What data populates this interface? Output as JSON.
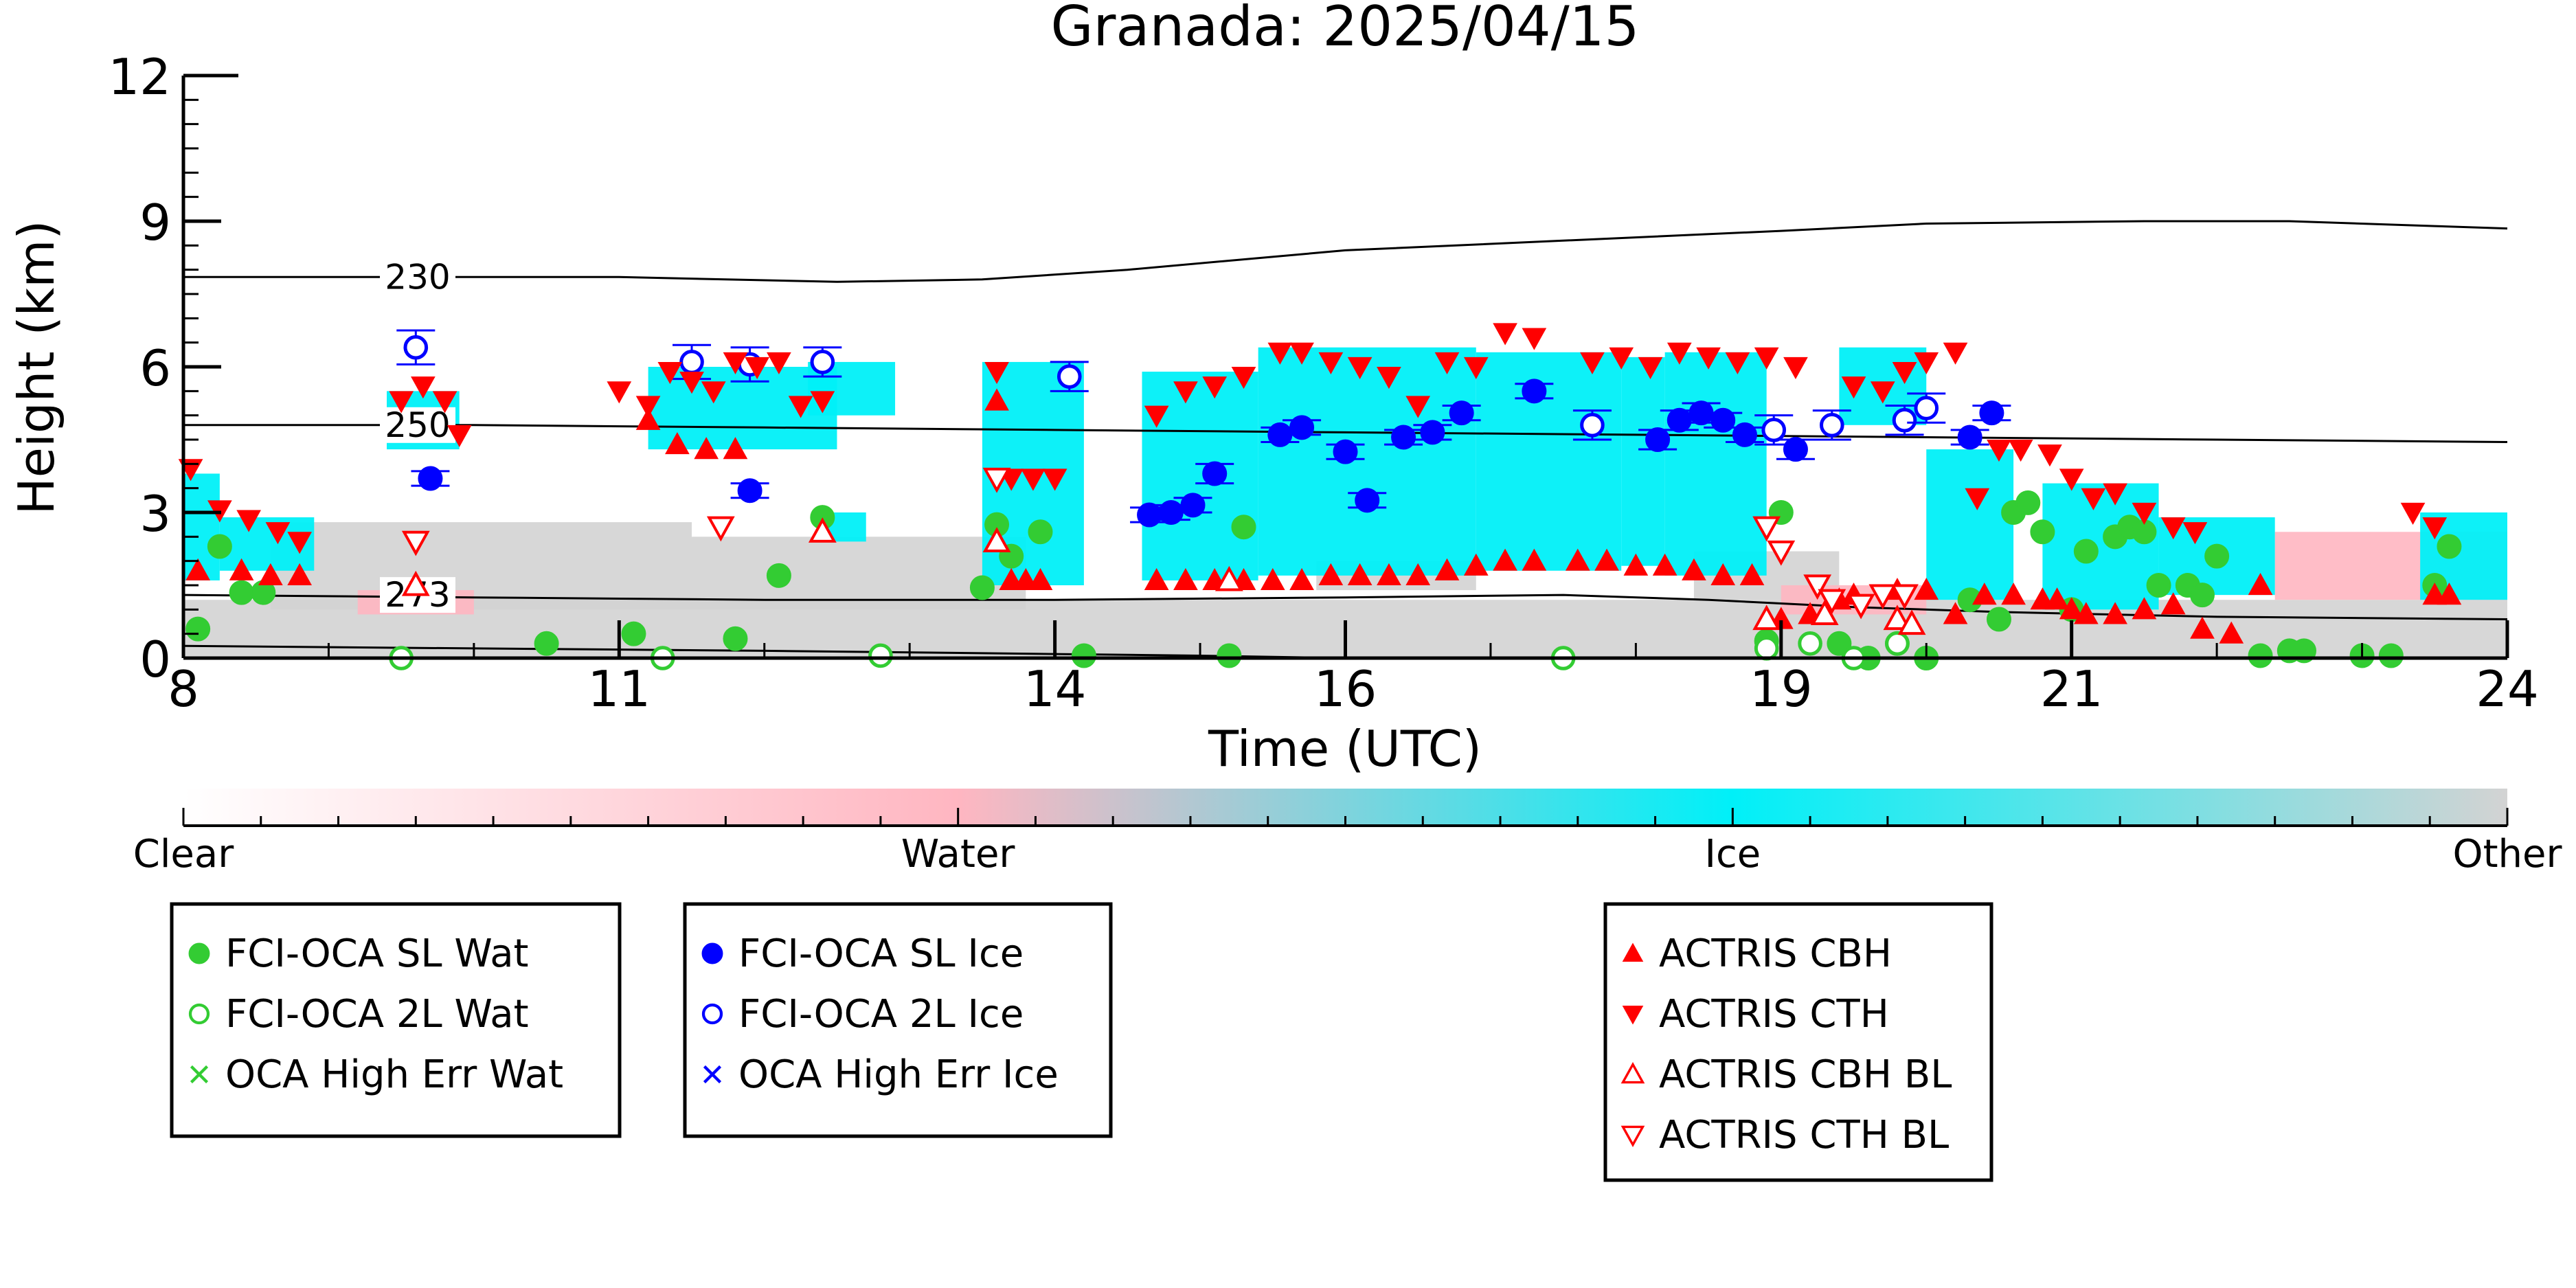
{
  "chart_data": {
    "type": "scatter",
    "title": "Granada: 2025/04/15",
    "xlabel": "Time (UTC)",
    "ylabel": "Height (km)",
    "xlim": [
      8,
      24
    ],
    "ylim": [
      0,
      12
    ],
    "x_ticks": [
      8,
      11,
      14,
      16,
      19,
      21,
      24
    ],
    "y_ticks": [
      0,
      3,
      6,
      9,
      12
    ],
    "grid": false,
    "colors": {
      "clear": "#ffffff",
      "water": "#ffb6c1",
      "ice": "#00f0f8",
      "other": "#d3d3d3",
      "fci_wat": "#33cc33",
      "fci_ice": "#0000ff",
      "actris": "#ff0000"
    },
    "colorbar": {
      "labels": [
        "Clear",
        "Water",
        "Ice",
        "Other"
      ],
      "colors": [
        "#ffffff",
        "#ffb6c1",
        "#00f0f8",
        "#d3d3d3"
      ]
    },
    "isotherms": [
      {
        "label": "230",
        "label_x": 9.4,
        "points": [
          [
            8,
            7.85
          ],
          [
            9,
            7.85
          ],
          [
            11,
            7.85
          ],
          [
            12.5,
            7.75
          ],
          [
            13.5,
            7.8
          ],
          [
            14.5,
            8.0
          ],
          [
            16,
            8.4
          ],
          [
            17.5,
            8.6
          ],
          [
            19,
            8.8
          ],
          [
            20,
            8.95
          ],
          [
            21.5,
            9.0
          ],
          [
            22.5,
            9.0
          ],
          [
            23.5,
            8.9
          ],
          [
            24,
            8.85
          ]
        ]
      },
      {
        "label": "250",
        "label_x": 9.4,
        "points": [
          [
            8,
            4.8
          ],
          [
            10,
            4.8
          ],
          [
            12,
            4.75
          ],
          [
            14,
            4.7
          ],
          [
            16,
            4.65
          ],
          [
            18,
            4.6
          ],
          [
            20,
            4.55
          ],
          [
            22,
            4.5
          ],
          [
            24,
            4.45
          ]
        ]
      },
      {
        "label": "273",
        "label_x": 9.4,
        "points": [
          [
            8,
            1.3
          ],
          [
            10,
            1.25
          ],
          [
            12,
            1.2
          ],
          [
            14,
            1.2
          ],
          [
            16,
            1.25
          ],
          [
            17.5,
            1.3
          ],
          [
            18.5,
            1.2
          ],
          [
            19.5,
            1.05
          ],
          [
            20.5,
            0.95
          ],
          [
            22,
            0.85
          ],
          [
            24,
            0.8
          ]
        ]
      },
      {
        "label": "",
        "label_x": null,
        "points": [
          [
            8,
            0.25
          ],
          [
            10,
            0.2
          ],
          [
            12,
            0.15
          ],
          [
            13.5,
            0.1
          ],
          [
            15,
            0.05
          ],
          [
            16,
            0.0
          ]
        ]
      }
    ],
    "cloud_regions": {
      "ice": [
        [
          8.0,
          8.25,
          1.6,
          3.8
        ],
        [
          8.25,
          8.9,
          1.8,
          2.9
        ],
        [
          9.4,
          9.9,
          4.3,
          5.5
        ],
        [
          11.2,
          12.5,
          4.3,
          6.0
        ],
        [
          12.3,
          12.9,
          5.0,
          6.1
        ],
        [
          12.4,
          12.7,
          2.4,
          3.0
        ],
        [
          13.5,
          14.2,
          1.5,
          6.1
        ],
        [
          14.6,
          15.4,
          1.6,
          5.9
        ],
        [
          15.4,
          16.9,
          1.7,
          6.4
        ],
        [
          16.9,
          17.9,
          1.8,
          6.3
        ],
        [
          17.9,
          18.2,
          1.9,
          6.2
        ],
        [
          18.2,
          18.9,
          1.7,
          6.3
        ],
        [
          19.4,
          20.0,
          4.8,
          6.4
        ],
        [
          20.0,
          20.6,
          1.2,
          4.3
        ],
        [
          20.8,
          21.6,
          1.0,
          3.6
        ],
        [
          21.6,
          22.4,
          1.3,
          2.9
        ],
        [
          23.4,
          24.0,
          1.2,
          3.0
        ]
      ],
      "other": [
        [
          8.0,
          24.0,
          0.0,
          1.2
        ],
        [
          8.6,
          11.5,
          1.0,
          2.8
        ],
        [
          11.5,
          13.8,
          1.0,
          2.5
        ],
        [
          15.8,
          16.9,
          1.4,
          2.0
        ],
        [
          18.4,
          19.4,
          1.2,
          2.2
        ]
      ],
      "water": [
        [
          9.2,
          10.0,
          0.9,
          1.4
        ],
        [
          19.0,
          20.0,
          0.9,
          1.5
        ],
        [
          22.4,
          24.0,
          1.2,
          2.6
        ]
      ]
    },
    "series": [
      {
        "name": "FCI-OCA SL Wat",
        "marker": "filled-circle",
        "color": "#33cc33",
        "x": [
          8.1,
          8.25,
          8.4,
          8.55,
          10.5,
          11.1,
          11.8,
          12.1,
          12.4,
          13.5,
          13.6,
          13.7,
          13.9,
          14.2,
          15.2,
          15.3,
          18.9,
          19.0,
          19.4,
          19.6,
          19.8,
          20.0,
          20.3,
          20.5,
          20.6,
          20.7,
          20.8,
          21.0,
          21.1,
          21.3,
          21.4,
          21.5,
          21.6,
          21.8,
          21.9,
          22.0,
          22.3,
          22.5,
          22.6,
          23.0,
          23.2,
          23.5,
          23.6
        ],
        "y": [
          0.6,
          2.3,
          1.35,
          1.35,
          0.3,
          0.5,
          0.4,
          1.7,
          2.9,
          1.45,
          2.75,
          2.1,
          2.6,
          0.05,
          0.05,
          2.7,
          0.35,
          3.0,
          0.3,
          0.0,
          0.3,
          0.0,
          1.2,
          0.8,
          3.0,
          3.2,
          2.6,
          1.0,
          2.2,
          2.5,
          2.7,
          2.6,
          1.5,
          1.5,
          1.3,
          2.1,
          0.05,
          0.15,
          0.15,
          0.05,
          0.05,
          1.5,
          2.3
        ]
      },
      {
        "name": "FCI-OCA 2L Wat",
        "marker": "open-circle",
        "color": "#33cc33",
        "x": [
          9.5,
          11.3,
          12.8,
          17.5,
          18.9,
          19.2,
          19.5,
          19.8
        ],
        "y": [
          0.0,
          0.0,
          0.05,
          0.0,
          0.2,
          0.3,
          0.0,
          0.3
        ]
      },
      {
        "name": "OCA High Err Wat",
        "marker": "x",
        "color": "#33cc33",
        "x": [],
        "y": []
      },
      {
        "name": "FCI-OCA SL Ice",
        "marker": "filled-circle",
        "color": "#0000ff",
        "x": [
          9.7,
          11.9,
          14.65,
          14.8,
          14.95,
          15.1,
          15.55,
          15.7,
          16.0,
          16.15,
          16.4,
          16.6,
          16.8,
          17.3,
          18.15,
          18.3,
          18.45,
          18.6,
          18.75,
          19.1,
          20.3,
          20.45
        ],
        "y": [
          3.7,
          3.45,
          2.95,
          3.0,
          3.15,
          3.8,
          4.6,
          4.75,
          4.25,
          3.25,
          4.55,
          4.65,
          5.05,
          5.5,
          4.5,
          4.9,
          5.05,
          4.9,
          4.6,
          4.3,
          4.55,
          5.05
        ],
        "err": [
          0.15,
          0.15,
          0.15,
          0.15,
          0.15,
          0.2,
          0.15,
          0.15,
          0.15,
          0.15,
          0.15,
          0.15,
          0.15,
          0.15,
          0.2,
          0.2,
          0.2,
          0.15,
          0.15,
          0.2,
          0.15,
          0.15
        ]
      },
      {
        "name": "FCI-OCA 2L Ice",
        "marker": "open-circle",
        "color": "#0000ff",
        "x": [
          9.6,
          11.5,
          11.9,
          12.4,
          14.1,
          17.7,
          18.95,
          19.35,
          19.85,
          20.0
        ],
        "y": [
          6.4,
          6.1,
          6.05,
          6.1,
          5.8,
          4.8,
          4.7,
          4.8,
          4.9,
          5.15
        ],
        "err": [
          0.35,
          0.35,
          0.35,
          0.3,
          0.3,
          0.3,
          0.3,
          0.3,
          0.3,
          0.3
        ]
      },
      {
        "name": "OCA High Err Ice",
        "marker": "x",
        "color": "#0000ff",
        "x": [],
        "y": []
      },
      {
        "name": "ACTRIS CBH",
        "marker": "triangle-up",
        "color": "#ff0000",
        "x": [
          8.1,
          8.4,
          8.6,
          8.8,
          11.2,
          11.4,
          11.6,
          11.8,
          13.6,
          13.7,
          13.8,
          13.9,
          14.7,
          14.9,
          15.1,
          15.3,
          15.5,
          15.7,
          15.9,
          16.1,
          16.3,
          16.5,
          16.7,
          16.9,
          17.1,
          17.3,
          17.6,
          17.8,
          18.0,
          18.2,
          18.4,
          18.6,
          18.8,
          19.0,
          19.2,
          19.4,
          19.5,
          19.8,
          20.0,
          20.2,
          20.4,
          20.6,
          20.8,
          20.9,
          21.0,
          21.1,
          21.3,
          21.5,
          21.7,
          21.9,
          22.1,
          22.3,
          23.5,
          23.6
        ],
        "y": [
          1.8,
          1.8,
          1.7,
          1.7,
          4.9,
          4.4,
          4.3,
          4.3,
          5.3,
          1.6,
          1.6,
          1.6,
          1.6,
          1.6,
          1.6,
          1.6,
          1.6,
          1.6,
          1.7,
          1.7,
          1.7,
          1.7,
          1.8,
          1.9,
          2.0,
          2.0,
          2.0,
          2.0,
          1.9,
          1.9,
          1.8,
          1.7,
          1.7,
          0.8,
          0.9,
          1.2,
          1.3,
          1.4,
          1.4,
          0.9,
          1.3,
          1.3,
          1.2,
          1.2,
          1.0,
          0.9,
          0.9,
          1.0,
          1.1,
          0.6,
          0.5,
          1.5,
          1.3,
          1.3
        ]
      },
      {
        "name": "ACTRIS CTH",
        "marker": "triangle-down",
        "color": "#ff0000",
        "x": [
          8.05,
          8.25,
          8.45,
          8.65,
          8.8,
          9.5,
          9.65,
          9.8,
          9.9,
          11.0,
          11.2,
          11.35,
          11.5,
          11.65,
          11.8,
          11.95,
          12.1,
          12.25,
          12.4,
          13.6,
          13.7,
          13.85,
          14.0,
          14.7,
          14.9,
          15.1,
          15.3,
          15.55,
          15.7,
          15.9,
          16.1,
          16.3,
          16.5,
          16.7,
          16.9,
          17.1,
          17.3,
          17.7,
          17.9,
          18.1,
          18.3,
          18.5,
          18.7,
          18.9,
          19.1,
          19.5,
          19.7,
          19.85,
          20.0,
          20.2,
          20.35,
          20.5,
          20.65,
          20.85,
          21.0,
          21.15,
          21.3,
          21.5,
          21.7,
          21.85,
          23.35,
          23.5
        ],
        "y": [
          3.9,
          3.05,
          2.85,
          2.6,
          2.4,
          5.3,
          5.6,
          5.3,
          4.6,
          5.5,
          5.2,
          5.9,
          5.7,
          5.5,
          6.1,
          6.0,
          6.1,
          5.2,
          5.3,
          5.9,
          3.7,
          3.7,
          3.7,
          5.0,
          5.5,
          5.6,
          5.8,
          6.3,
          6.3,
          6.1,
          6.0,
          5.8,
          5.2,
          6.1,
          6.0,
          6.7,
          6.6,
          6.1,
          6.2,
          6.0,
          6.3,
          6.2,
          6.1,
          6.2,
          6.0,
          5.6,
          5.5,
          5.9,
          6.1,
          6.3,
          3.3,
          4.3,
          4.3,
          4.2,
          3.7,
          3.3,
          3.4,
          3.0,
          2.7,
          2.6,
          3.0,
          2.7
        ]
      },
      {
        "name": "ACTRIS CBH BL",
        "marker": "open-triangle-up",
        "color": "#ff0000",
        "x": [
          9.6,
          12.4,
          13.6,
          15.2,
          18.9,
          19.3,
          19.8,
          19.9
        ],
        "y": [
          1.5,
          2.6,
          2.4,
          1.6,
          0.8,
          0.9,
          0.8,
          0.7
        ]
      },
      {
        "name": "ACTRIS CTH BL",
        "marker": "open-triangle-down",
        "color": "#ff0000",
        "x": [
          9.6,
          11.7,
          13.6,
          18.9,
          19.0,
          19.25,
          19.35,
          19.55,
          19.7,
          19.85
        ],
        "y": [
          2.4,
          2.7,
          3.7,
          2.7,
          2.2,
          1.5,
          1.2,
          1.1,
          1.3,
          1.3
        ]
      }
    ],
    "legends": [
      {
        "entries": [
          "FCI-OCA SL Wat",
          "FCI-OCA 2L Wat",
          "OCA High Err Wat"
        ]
      },
      {
        "entries": [
          "FCI-OCA SL Ice",
          "FCI-OCA 2L Ice",
          "OCA High Err Ice"
        ]
      },
      {
        "entries": [
          "ACTRIS CBH",
          "ACTRIS CTH",
          "ACTRIS CBH BL",
          "ACTRIS CTH BL"
        ]
      }
    ]
  }
}
